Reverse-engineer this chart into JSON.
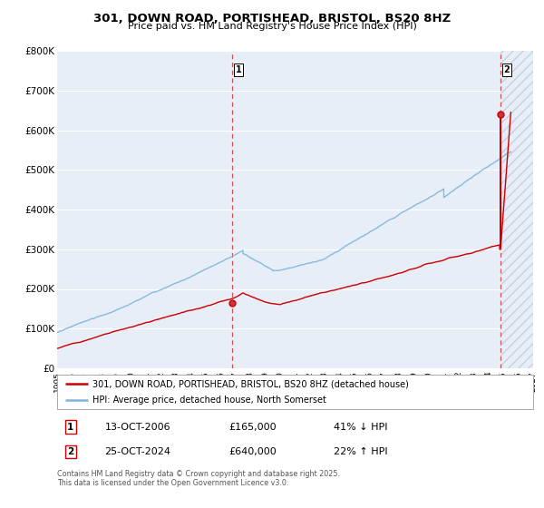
{
  "title": "301, DOWN ROAD, PORTISHEAD, BRISTOL, BS20 8HZ",
  "subtitle": "Price paid vs. HM Land Registry's House Price Index (HPI)",
  "legend_line1": "301, DOWN ROAD, PORTISHEAD, BRISTOL, BS20 8HZ (detached house)",
  "legend_line2": "HPI: Average price, detached house, North Somerset",
  "footnote": "Contains HM Land Registry data © Crown copyright and database right 2025.\nThis data is licensed under the Open Government Licence v3.0.",
  "sale1_date": "13-OCT-2006",
  "sale1_price": "£165,000",
  "sale1_hpi": "41% ↓ HPI",
  "sale2_date": "25-OCT-2024",
  "sale2_price": "£640,000",
  "sale2_hpi": "22% ↑ HPI",
  "marker1_x": 2006.79,
  "marker1_y": 165000,
  "marker2_x": 2024.81,
  "marker2_y": 640000,
  "vline1_x": 2006.79,
  "vline2_x": 2024.81,
  "xmin": 1995,
  "xmax": 2027,
  "ymin": 0,
  "ymax": 800000,
  "yticks": [
    0,
    100000,
    200000,
    300000,
    400000,
    500000,
    600000,
    700000,
    800000
  ],
  "ytick_labels": [
    "£0",
    "£100K",
    "£200K",
    "£300K",
    "£400K",
    "£500K",
    "£600K",
    "£700K",
    "£800K"
  ],
  "xticks": [
    1995,
    1996,
    1997,
    1998,
    1999,
    2000,
    2001,
    2002,
    2003,
    2004,
    2005,
    2006,
    2007,
    2008,
    2009,
    2010,
    2011,
    2012,
    2013,
    2014,
    2015,
    2016,
    2017,
    2018,
    2019,
    2020,
    2021,
    2022,
    2023,
    2024,
    2025,
    2026,
    2027
  ],
  "hpi_color": "#7eb6d9",
  "price_color": "#cc0000",
  "vline_color": "#d04040",
  "bg_color": "#e8eef8",
  "grid_color": "#ffffff",
  "marker_color": "#cc0000",
  "hatch_color": "#c8d0e0"
}
